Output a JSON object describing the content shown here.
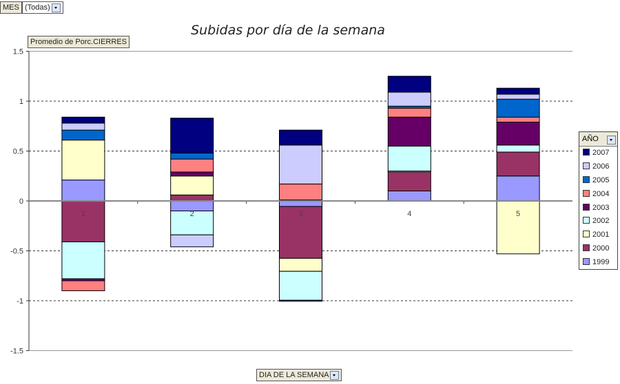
{
  "filter": {
    "field_label": "MES",
    "value": "(Todas)"
  },
  "data_field_label": "Promedio de Porc.CIERRES",
  "category_field_label": "DIA DE LA SEMANA",
  "chart_data": {
    "type": "bar",
    "stacked": true,
    "title": "Subidas por día de la semana",
    "xlabel": "",
    "ylabel": "",
    "ylim": [
      -1.5,
      1.5
    ],
    "yticks": [
      "1.5",
      "1",
      "0.5",
      "0",
      "-0.5",
      "-1",
      "-1.5"
    ],
    "ytick_values": [
      1.5,
      1,
      0.5,
      0,
      -0.5,
      -1,
      -1.5
    ],
    "grid": true,
    "legend_title": "AÑO",
    "legend_position": "right",
    "categories": [
      "1",
      "2",
      "3",
      "4",
      "5"
    ],
    "series": [
      {
        "name": "1999",
        "color": "#9999FF",
        "values": [
          0.21,
          -0.1,
          -0.055,
          0.1,
          0.25
        ]
      },
      {
        "name": "2000",
        "color": "#993366",
        "values": [
          -0.41,
          0.06,
          -0.52,
          0.19,
          0.24
        ]
      },
      {
        "name": "2001",
        "color": "#FFFFCC",
        "values": [
          0.4,
          0.19,
          -0.13,
          0.01,
          -0.53
        ]
      },
      {
        "name": "2002",
        "color": "#CCFFFF",
        "values": [
          -0.37,
          -0.24,
          -0.29,
          0.25,
          0.07
        ]
      },
      {
        "name": "2003",
        "color": "#660066",
        "values": [
          -0.02,
          0.04,
          0.01,
          0.29,
          0.23
        ]
      },
      {
        "name": "2004",
        "color": "#FF8080",
        "values": [
          -0.1,
          0.13,
          0.16,
          0.09,
          0.05
        ]
      },
      {
        "name": "2005",
        "color": "#0066CC",
        "values": [
          0.1,
          0.06,
          -0.01,
          0.02,
          0.18
        ]
      },
      {
        "name": "2006",
        "color": "#CCCCFF",
        "values": [
          0.07,
          -0.12,
          0.39,
          0.14,
          0.05
        ]
      },
      {
        "name": "2007",
        "color": "#000080",
        "values": [
          0.06,
          0.35,
          0.15,
          0.16,
          0.06
        ]
      }
    ]
  }
}
